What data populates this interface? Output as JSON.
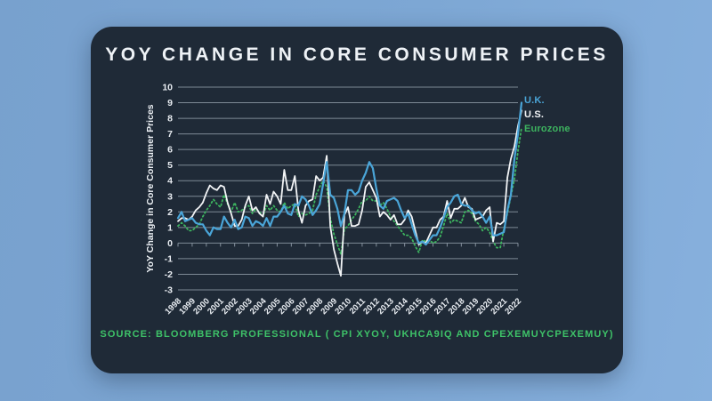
{
  "colors": {
    "page_background": "#7da7d4",
    "card_background": "#1f2a37",
    "grid": "#909cа8",
    "gridline": "#8f9ba7",
    "axis_text": "#e9edf2",
    "title_text": "#eef2f6",
    "source_text": "#3ec268",
    "uk_line": "#4aa5d8",
    "us_line": "#f2f4f6",
    "eurozone_line": "#3db45f"
  },
  "card": {
    "title": "YOY CHANGE IN CORE CONSUMER PRICES",
    "source": "SOURCE: BLOOMBERG PROFESSIONAL ( CPI XYOY, UKHCA9IQ AND CPEXEMUYCPEXEMUY)"
  },
  "chart_data": {
    "type": "line",
    "title": "YOY CHANGE IN CORE CONSUMER PRICES",
    "xlabel": "",
    "ylabel": "YoY Change in Core Consumer Prices",
    "ylim": [
      -3,
      10
    ],
    "yticks": [
      -3,
      -2,
      -1,
      0,
      1,
      2,
      3,
      4,
      5,
      6,
      7,
      8,
      9,
      10
    ],
    "xlim": [
      1998,
      2022.3
    ],
    "x_year_ticks": [
      1998,
      1999,
      2000,
      2001,
      2002,
      2003,
      2004,
      2005,
      2006,
      2007,
      2008,
      2009,
      2010,
      2011,
      2012,
      2013,
      2014,
      2015,
      2016,
      2017,
      2018,
      2019,
      2020,
      2021,
      2022
    ],
    "grid": true,
    "legend_position": "top-right",
    "x": [
      1998.0,
      1998.25,
      1998.5,
      1998.75,
      1999.0,
      1999.25,
      1999.5,
      1999.75,
      2000.0,
      2000.25,
      2000.5,
      2000.75,
      2001.0,
      2001.25,
      2001.5,
      2001.75,
      2002.0,
      2002.25,
      2002.5,
      2002.75,
      2003.0,
      2003.25,
      2003.5,
      2003.75,
      2004.0,
      2004.25,
      2004.5,
      2004.75,
      2005.0,
      2005.25,
      2005.5,
      2005.75,
      2006.0,
      2006.25,
      2006.5,
      2006.75,
      2007.0,
      2007.25,
      2007.5,
      2007.75,
      2008.0,
      2008.25,
      2008.5,
      2008.75,
      2009.0,
      2009.25,
      2009.5,
      2009.75,
      2010.0,
      2010.25,
      2010.5,
      2010.75,
      2011.0,
      2011.25,
      2011.5,
      2011.75,
      2012.0,
      2012.25,
      2012.5,
      2012.75,
      2013.0,
      2013.25,
      2013.5,
      2013.75,
      2014.0,
      2014.25,
      2014.5,
      2014.75,
      2015.0,
      2015.25,
      2015.5,
      2015.75,
      2016.0,
      2016.25,
      2016.5,
      2016.75,
      2017.0,
      2017.25,
      2017.5,
      2017.75,
      2018.0,
      2018.25,
      2018.5,
      2018.75,
      2019.0,
      2019.25,
      2019.5,
      2019.75,
      2020.0,
      2020.25,
      2020.5,
      2020.75,
      2021.0,
      2021.25,
      2021.5,
      2021.75,
      2022.0,
      2022.25
    ],
    "series": [
      {
        "name": "Eurozone",
        "color": "#3db45f",
        "style": "dotted",
        "values": [
          1.1,
          1.3,
          1.1,
          0.8,
          0.8,
          1.0,
          1.2,
          1.7,
          2.1,
          2.4,
          2.8,
          2.5,
          2.3,
          3.1,
          2.5,
          2.0,
          2.6,
          2.0,
          2.1,
          2.3,
          2.4,
          1.9,
          2.2,
          2.0,
          1.7,
          2.4,
          2.1,
          2.4,
          2.1,
          2.0,
          2.6,
          2.2,
          2.4,
          2.5,
          1.7,
          1.9,
          1.8,
          1.9,
          2.1,
          3.1,
          3.6,
          4.0,
          3.6,
          1.6,
          0.6,
          -0.1,
          -0.7,
          0.9,
          1.1,
          1.5,
          1.8,
          2.2,
          2.7,
          2.7,
          3.0,
          2.7,
          2.7,
          2.4,
          2.6,
          2.2,
          1.7,
          1.4,
          1.1,
          0.8,
          0.5,
          0.5,
          0.3,
          -0.2,
          -0.6,
          0.2,
          0.1,
          0.2,
          0.0,
          0.1,
          0.4,
          1.1,
          1.9,
          1.3,
          1.5,
          1.4,
          1.3,
          2.0,
          2.1,
          1.9,
          1.4,
          1.2,
          0.8,
          1.0,
          0.7,
          0.1,
          -0.3,
          -0.3,
          0.9,
          1.9,
          3.0,
          4.1,
          5.9,
          7.4
        ]
      },
      {
        "name": "U.S.",
        "color": "#f2f4f6",
        "style": "solid",
        "values": [
          1.4,
          1.6,
          1.6,
          1.5,
          1.7,
          2.1,
          2.3,
          2.6,
          3.2,
          3.7,
          3.5,
          3.4,
          3.7,
          3.6,
          2.6,
          1.9,
          1.1,
          1.1,
          1.5,
          2.4,
          3.0,
          2.1,
          2.3,
          1.9,
          1.7,
          3.1,
          2.5,
          3.3,
          3.0,
          2.5,
          4.7,
          3.4,
          3.4,
          4.3,
          2.1,
          1.3,
          2.4,
          2.7,
          2.8,
          4.3,
          4.0,
          4.2,
          5.6,
          1.1,
          -0.4,
          -1.3,
          -2.1,
          1.8,
          2.3,
          1.1,
          1.1,
          1.2,
          2.1,
          3.6,
          3.9,
          3.4,
          2.9,
          1.7,
          2.0,
          1.8,
          1.5,
          1.8,
          1.2,
          1.2,
          1.5,
          2.1,
          1.7,
          0.8,
          -0.1,
          0.1,
          0.0,
          0.5,
          1.0,
          1.0,
          1.5,
          1.7,
          2.7,
          1.6,
          2.2,
          2.2,
          2.4,
          2.9,
          2.3,
          2.2,
          1.5,
          1.6,
          1.7,
          2.1,
          2.3,
          0.1,
          1.3,
          1.2,
          1.4,
          4.2,
          5.4,
          6.2,
          7.5,
          8.5
        ]
      },
      {
        "name": "U.K.",
        "color": "#4aa5d8",
        "style": "solid",
        "values": [
          1.6,
          2.0,
          1.4,
          1.5,
          1.6,
          1.3,
          1.2,
          1.2,
          0.8,
          0.5,
          1.0,
          0.9,
          0.9,
          1.7,
          1.3,
          1.0,
          1.5,
          0.9,
          1.0,
          1.7,
          1.6,
          1.1,
          1.4,
          1.3,
          1.1,
          1.6,
          1.1,
          1.7,
          1.7,
          2.0,
          2.4,
          1.9,
          1.8,
          2.5,
          2.4,
          3.0,
          2.8,
          2.4,
          1.8,
          2.1,
          2.5,
          3.8,
          5.2,
          3.1,
          2.9,
          2.2,
          1.1,
          1.9,
          3.4,
          3.4,
          3.1,
          3.3,
          4.0,
          4.5,
          5.2,
          4.8,
          3.5,
          2.4,
          2.2,
          2.7,
          2.8,
          2.9,
          2.7,
          2.1,
          1.6,
          1.9,
          1.2,
          0.5,
          0.0,
          0.1,
          -0.1,
          0.2,
          0.5,
          0.5,
          1.0,
          1.6,
          2.3,
          2.6,
          3.0,
          3.1,
          2.5,
          2.4,
          2.4,
          2.1,
          1.9,
          2.0,
          1.7,
          1.3,
          1.7,
          0.5,
          0.5,
          0.6,
          0.7,
          2.1,
          3.1,
          5.4,
          7.0,
          9.0
        ]
      }
    ],
    "legend": [
      {
        "label": "U.K.",
        "color": "#4aa5d8"
      },
      {
        "label": "U.S.",
        "color": "#f2f4f6"
      },
      {
        "label": "Eurozone",
        "color": "#3db45f"
      }
    ]
  }
}
